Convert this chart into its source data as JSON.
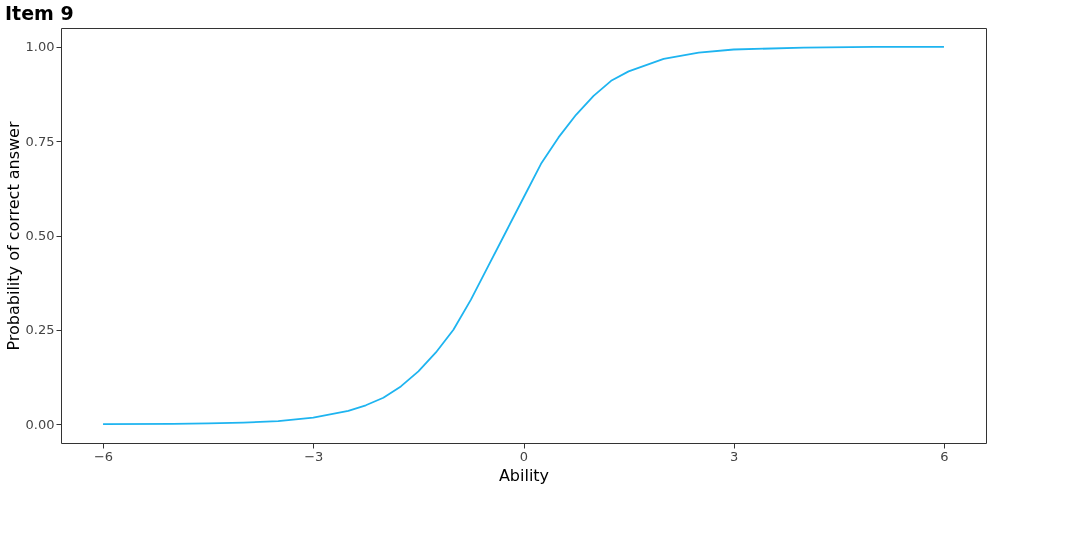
{
  "chart_data": {
    "type": "line",
    "title": "Item 9",
    "xlabel": "Ability",
    "ylabel": "Probability of correct answer",
    "x": [
      -6,
      -5,
      -4.5,
      -4,
      -3.5,
      -3,
      -2.5,
      -2.25,
      -2,
      -1.75,
      -1.5,
      -1.25,
      -1,
      -0.75,
      -0.5,
      -0.25,
      0,
      0.25,
      0.5,
      0.75,
      1,
      1.25,
      1.5,
      2,
      2.5,
      3,
      4,
      5,
      6
    ],
    "series": [
      {
        "color": "#1eb4f0",
        "values": [
          0.0002,
          0.0008,
          0.002,
          0.004,
          0.008,
          0.017,
          0.035,
          0.05,
          0.07,
          0.1,
          0.14,
          0.19,
          0.25,
          0.33,
          0.42,
          0.51,
          0.6,
          0.69,
          0.76,
          0.82,
          0.87,
          0.91,
          0.935,
          0.968,
          0.985,
          0.993,
          0.998,
          1.0,
          1.0
        ]
      }
    ],
    "xlim": [
      -6.6,
      6.6
    ],
    "xticks": [
      -6,
      -3,
      0,
      3,
      6
    ],
    "ylim": [
      -0.05,
      1.05
    ],
    "yticks": [
      {
        "value": 0,
        "label": "0.00"
      },
      {
        "value": 0.25,
        "label": "0.25"
      },
      {
        "value": 0.5,
        "label": "0.50"
      },
      {
        "value": 0.75,
        "label": "0.75"
      },
      {
        "value": 1,
        "label": "1.00"
      }
    ],
    "grid": false,
    "legend": false
  }
}
